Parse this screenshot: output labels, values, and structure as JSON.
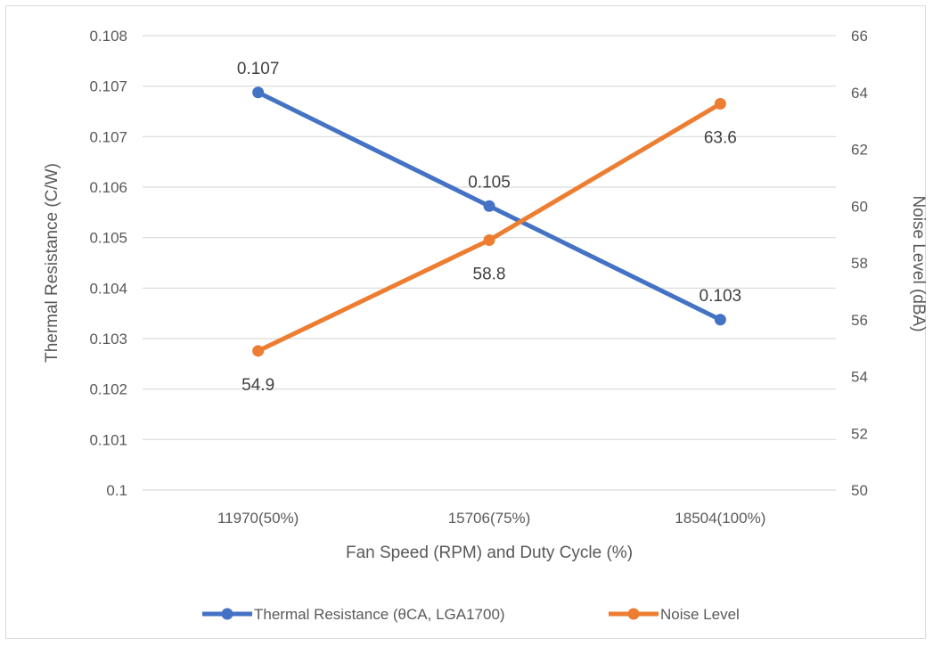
{
  "chart_data": {
    "type": "line",
    "categories": [
      "11970(50%)",
      "15706(75%)",
      "18504(100%)"
    ],
    "xlabel": "Fan Speed (RPM) and Duty Cycle (%)",
    "ylabel": "Thermal Resistance (C/W)",
    "y2label": "Noise Level (dBA)",
    "ylim": [
      0.1,
      0.108
    ],
    "y2lim": [
      50,
      66
    ],
    "yticks": [
      "0.1",
      "0.101",
      "0.102",
      "0.103",
      "0.104",
      "0.105",
      "0.106",
      "0.107",
      "0.107",
      "0.108"
    ],
    "y2ticks": [
      "50",
      "52",
      "54",
      "56",
      "58",
      "60",
      "62",
      "64",
      "66"
    ],
    "grid": true,
    "legend_position": "bottom",
    "series": [
      {
        "name": "Thermal Resistance (θCA, LGA1700)",
        "axis": "left",
        "color": "#4472c4",
        "values": [
          0.107,
          0.105,
          0.103
        ],
        "labels": [
          "0.107",
          "0.105",
          "0.103"
        ]
      },
      {
        "name": "Noise Level",
        "axis": "right",
        "color": "#ed7d31",
        "values": [
          54.9,
          58.8,
          63.6
        ],
        "labels": [
          "54.9",
          "58.8",
          "63.6"
        ]
      }
    ]
  }
}
